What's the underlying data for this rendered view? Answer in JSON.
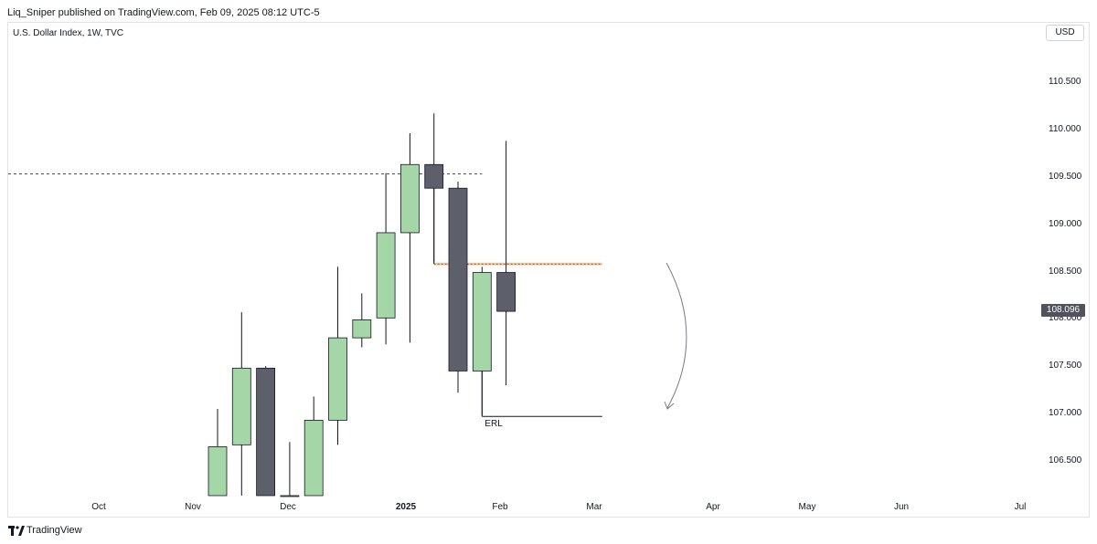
{
  "header": {
    "published": "Liq_Sniper published on TradingView.com, Feb 09, 2025 08:12 UTC-5"
  },
  "symbol": {
    "title": "U.S. Dollar Index, 1W, TVC"
  },
  "currency_button": "USD",
  "last_price": "108.096",
  "footer": {
    "brand": "TradingView",
    "logo_icon": "tradingview-logo-icon"
  },
  "colors": {
    "up": "#a5d6a7",
    "down": "#5d606b",
    "outline": "#131722",
    "orange_level": "#f5c28b"
  },
  "chart_data": {
    "type": "candlestick",
    "y_axis": {
      "ticks": [
        "106.500",
        "107.000",
        "107.500",
        "108.000",
        "108.500",
        "109.000",
        "109.500",
        "110.000",
        "110.500"
      ]
    },
    "x_axis": {
      "ticks": [
        {
          "label": "Oct",
          "bold": false
        },
        {
          "label": "Nov",
          "bold": false
        },
        {
          "label": "Dec",
          "bold": false
        },
        {
          "label": "2025",
          "bold": true
        },
        {
          "label": "Feb",
          "bold": false
        },
        {
          "label": "Mar",
          "bold": false
        },
        {
          "label": "Apr",
          "bold": false
        },
        {
          "label": "May",
          "bold": false
        },
        {
          "label": "Jun",
          "bold": false
        },
        {
          "label": "Jul",
          "bold": false
        }
      ]
    },
    "candles": [
      {
        "week": "2024-11-11",
        "open": 105.6,
        "high": 107.05,
        "low": 105.0,
        "close": 106.65
      },
      {
        "week": "2024-11-18",
        "open": 106.67,
        "high": 108.07,
        "low": 105.0,
        "close": 107.48
      },
      {
        "week": "2024-11-25",
        "open": 107.48,
        "high": 107.5,
        "low": 105.0,
        "close": 105.6
      },
      {
        "week": "2024-12-02",
        "open": 105.0,
        "high": 106.7,
        "low": 105.0,
        "close": 105.5
      },
      {
        "week": "2024-12-09",
        "open": 105.8,
        "high": 107.18,
        "low": 105.0,
        "close": 106.93
      },
      {
        "week": "2024-12-16",
        "open": 106.93,
        "high": 108.55,
        "low": 106.67,
        "close": 107.8
      },
      {
        "week": "2024-12-23",
        "open": 107.8,
        "high": 108.27,
        "low": 107.7,
        "close": 107.99
      },
      {
        "week": "2024-12-30",
        "open": 108.01,
        "high": 109.54,
        "low": 107.73,
        "close": 108.91
      },
      {
        "week": "2025-01-06",
        "open": 108.91,
        "high": 109.96,
        "low": 107.75,
        "close": 109.63
      },
      {
        "week": "2025-01-13",
        "open": 109.63,
        "high": 110.17,
        "low": 108.6,
        "close": 109.38
      },
      {
        "week": "2025-01-20",
        "open": 109.38,
        "high": 109.45,
        "low": 107.22,
        "close": 107.45
      },
      {
        "week": "2025-01-27",
        "open": 107.45,
        "high": 108.55,
        "low": 106.98,
        "close": 108.49
      },
      {
        "week": "2025-02-03",
        "open": 108.49,
        "high": 109.88,
        "low": 107.3,
        "close": 108.08
      }
    ],
    "horizontal_levels": [
      {
        "price": 109.53,
        "style": "dashed",
        "from_week": "2024-08-19",
        "to_week": "2025-01-27"
      },
      {
        "price": 108.58,
        "style": "highlight",
        "from_week": "2025-01-13",
        "to_week": "2025-03-03"
      },
      {
        "price": 106.97,
        "style": "solid",
        "from_week": "2025-01-27",
        "to_week": "2025-03-03",
        "label": "ERL"
      }
    ]
  }
}
